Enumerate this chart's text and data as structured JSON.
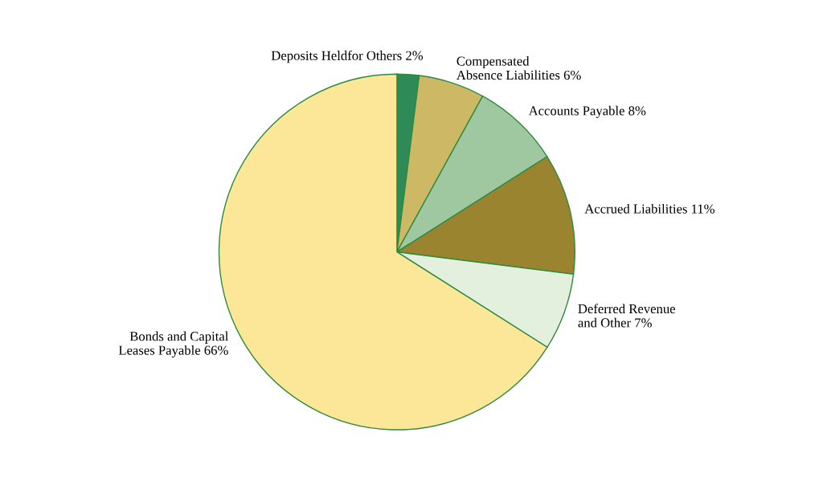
{
  "chart_data": {
    "type": "pie",
    "categories": [
      "Deposits Heldfor Others",
      "Compensated\nAbsence Liabilities",
      "Accounts Payable",
      "Accrued Liabilities",
      "Deferred Revenue\nand Other",
      "Bonds and Capital\nLeases Payable"
    ],
    "values": [
      2,
      6,
      8,
      11,
      7,
      66
    ],
    "value_labels": [
      "2%",
      "6%",
      "8%",
      "11%",
      "7%",
      "66%"
    ],
    "colors": [
      "#2e8b57",
      "#cdb865",
      "#a0c8a0",
      "#9a8430",
      "#e4f0de",
      "#fce697"
    ]
  }
}
